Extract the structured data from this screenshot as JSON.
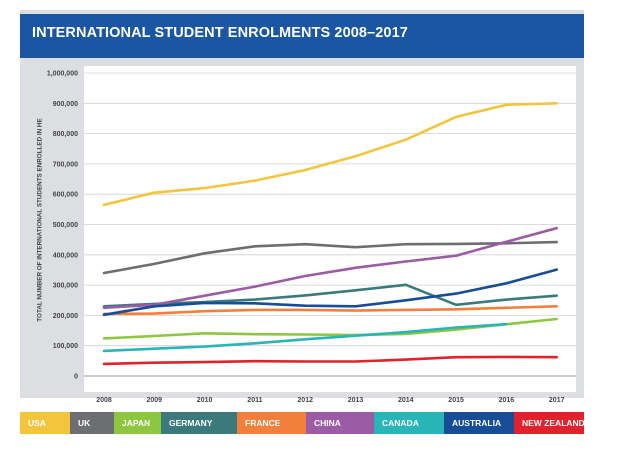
{
  "chart_data": {
    "type": "line",
    "title": "INTERNATIONAL STUDENT ENROLMENTS 2008–2017",
    "xlabel": "",
    "ylabel": "TOTAL NUMBER OF INTERNATIONAL STUDENTS ENROLLED IN HE",
    "ylim": [
      0,
      1000000
    ],
    "yticks": [
      0,
      100000,
      200000,
      300000,
      400000,
      500000,
      600000,
      700000,
      800000,
      900000,
      1000000
    ],
    "ytick_labels": [
      "0",
      "100,000",
      "200,000",
      "300,000",
      "400,000",
      "500,000",
      "600,000",
      "700,000",
      "800,000",
      "900,000",
      "1,000,000"
    ],
    "x": [
      "2008",
      "2009",
      "2010",
      "2011",
      "2012",
      "2013",
      "2014",
      "2015",
      "2016",
      "2017"
    ],
    "grid": true,
    "legend_position": "bottom",
    "series": [
      {
        "name": "USA",
        "color": "#f2c53d",
        "values": [
          565000,
          605000,
          620000,
          645000,
          680000,
          725000,
          780000,
          855000,
          895000,
          900000
        ]
      },
      {
        "name": "UK",
        "color": "#6d6e71",
        "values": [
          340000,
          370000,
          405000,
          428000,
          435000,
          425000,
          435000,
          436000,
          438000,
          442000
        ]
      },
      {
        "name": "JAPAN",
        "color": "#8dc63f",
        "values": [
          124000,
          132000,
          141000,
          138000,
          137000,
          135000,
          139000,
          153000,
          171000,
          188000
        ]
      },
      {
        "name": "GERMANY",
        "color": "#3b7a7c",
        "values": [
          230000,
          238000,
          244000,
          252000,
          266000,
          283000,
          301000,
          235000,
          252000,
          265000
        ]
      },
      {
        "name": "FRANCE",
        "color": "#f47f3c",
        "values": [
          205000,
          206000,
          214000,
          218000,
          218000,
          216000,
          218000,
          220000,
          225000,
          230000
        ]
      },
      {
        "name": "CHINA",
        "color": "#9b5ba5",
        "values": [
          225000,
          235000,
          265000,
          295000,
          330000,
          357000,
          378000,
          397000,
          443000,
          488000
        ]
      },
      {
        "name": "CANADA",
        "color": "#27b5b8",
        "values": [
          83000,
          90000,
          97000,
          108000,
          121000,
          133000,
          145000,
          160000,
          171000,
          null
        ]
      },
      {
        "name": "AUSTRALIA",
        "color": "#164d96",
        "values": [
          202000,
          230000,
          241000,
          240000,
          232000,
          230000,
          250000,
          272000,
          306000,
          351000
        ]
      },
      {
        "name": "NEW ZEALAND",
        "color": "#e1212b",
        "values": [
          40000,
          44000,
          46000,
          49000,
          48000,
          48000,
          54000,
          62000,
          63000,
          62000
        ]
      }
    ]
  },
  "legend": {
    "items": [
      {
        "label": "USA",
        "color": "#f2c53d"
      },
      {
        "label": "UK",
        "color": "#6d6e71"
      },
      {
        "label": "JAPAN",
        "color": "#8dc63f"
      },
      {
        "label": "GERMANY",
        "color": "#3b7a7c"
      },
      {
        "label": "FRANCE",
        "color": "#f47f3c"
      },
      {
        "label": "CHINA",
        "color": "#9b5ba5"
      },
      {
        "label": "CANADA",
        "color": "#27b5b8"
      },
      {
        "label": "AUSTRALIA",
        "color": "#164d96"
      },
      {
        "label": "NEW ZEALAND",
        "color": "#e1212b"
      }
    ]
  }
}
